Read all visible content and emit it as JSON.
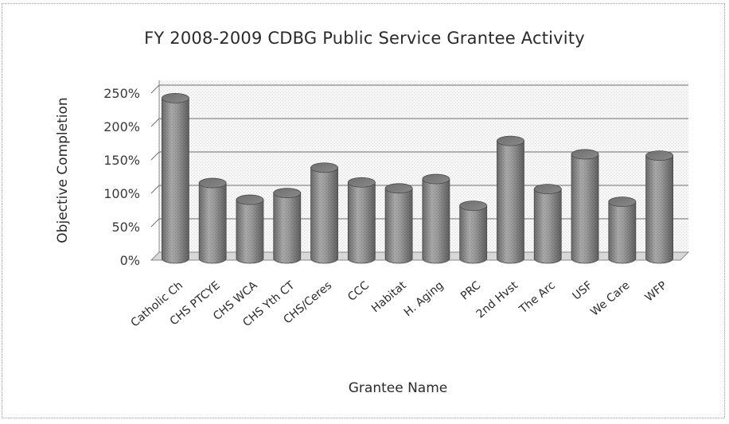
{
  "chart_data": {
    "type": "bar",
    "title": "FY 2008-2009 CDBG Public Service Grantee Activity",
    "xlabel": "Grantee Name",
    "ylabel": "Objective Completion",
    "categories": [
      "Catholic Ch",
      "CHS PTCYE",
      "CHS WCA",
      "CHS Yth CT",
      "CHS/Ceres",
      "CCC",
      "Habitat",
      "H. Aging",
      "PRC",
      "2nd Hvst",
      "The Arc",
      "USF",
      "We Care",
      "WFP"
    ],
    "values": [
      240,
      113,
      88,
      98,
      136,
      114,
      105,
      119,
      79,
      176,
      104,
      156,
      85,
      154
    ],
    "yticks": [
      "0%",
      "50%",
      "100%",
      "150%",
      "200%",
      "250%"
    ],
    "ylim": [
      0,
      250
    ],
    "y_unit": "%",
    "grid": true,
    "style": "3d-cylinder",
    "bar_color": "#8c8c8c"
  }
}
